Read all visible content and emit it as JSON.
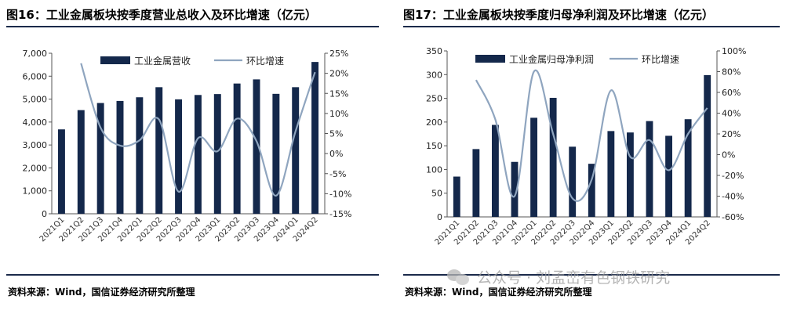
{
  "watermark": {
    "text": "公众号 · 刘孟峦有色钢铁研究"
  },
  "chart_data": [
    {
      "type": "bar",
      "title": "图16：工业金属板块按季度营业总收入及环比增速（亿元）",
      "source": "资料来源：Wind，国信证券经济研究所整理",
      "categories": [
        "2021Q1",
        "2021Q2",
        "2021Q3",
        "2021Q4",
        "2022Q1",
        "2022Q2",
        "2022Q3",
        "2022Q4",
        "2023Q1",
        "2023Q2",
        "2023Q3",
        "2023Q4",
        "2024Q1",
        "2024Q2"
      ],
      "series": [
        {
          "name": "工业金属营收",
          "kind": "bar",
          "axis": "left",
          "color": "#14284b",
          "values": [
            3680,
            4520,
            4830,
            4920,
            5080,
            5520,
            4990,
            5180,
            5220,
            5680,
            5860,
            5230,
            5520,
            6620
          ]
        },
        {
          "name": "环比增速",
          "kind": "line",
          "axis": "right",
          "color": "#8fa5bf",
          "values": [
            null,
            22.5,
            6.5,
            2.0,
            3.3,
            8.5,
            -9.5,
            3.8,
            0.6,
            8.7,
            3.1,
            -10.5,
            5.5,
            20.3
          ]
        }
      ],
      "ylim_left": [
        0,
        7000
      ],
      "yticks_left": [
        "0",
        "1,000",
        "2,000",
        "3,000",
        "4,000",
        "5,000",
        "6,000",
        "7,000"
      ],
      "ylim_right": [
        -15,
        25
      ],
      "yticks_right": [
        "-15%",
        "-10%",
        "-5%",
        "0%",
        "5%",
        "10%",
        "15%",
        "20%",
        "25%"
      ],
      "legend": "top-center"
    },
    {
      "type": "bar",
      "title": "图17：工业金属板块按季度归母净利润及环比增速（亿元）",
      "source": "资料来源：Wind，国信证券经济研究所整理",
      "categories": [
        "2021Q1",
        "2021Q2",
        "2021Q3",
        "2021Q4",
        "2022Q1",
        "2022Q2",
        "2022Q3",
        "2022Q4",
        "2023Q1",
        "2023Q2",
        "2023Q3",
        "2023Q4",
        "2024Q1",
        "2024Q2"
      ],
      "series": [
        {
          "name": "工业金属归母净利润",
          "kind": "bar",
          "axis": "left",
          "color": "#14284b",
          "values": [
            85,
            143,
            194,
            116,
            209,
            251,
            148,
            112,
            181,
            178,
            202,
            171,
            206,
            299
          ]
        },
        {
          "name": "环比增速",
          "kind": "line",
          "axis": "right",
          "color": "#8fa5bf",
          "values": [
            null,
            72,
            34,
            -40,
            80,
            20,
            -42,
            -24,
            62,
            -2,
            14,
            -15,
            20,
            45
          ]
        }
      ],
      "ylim_left": [
        0,
        350
      ],
      "yticks_left": [
        "0",
        "50",
        "100",
        "150",
        "200",
        "250",
        "300",
        "350"
      ],
      "ylim_right": [
        -60,
        100
      ],
      "yticks_right": [
        "-60%",
        "-40%",
        "-20%",
        "0%",
        "20%",
        "40%",
        "60%",
        "80%",
        "100%"
      ],
      "legend": "top-center"
    }
  ]
}
